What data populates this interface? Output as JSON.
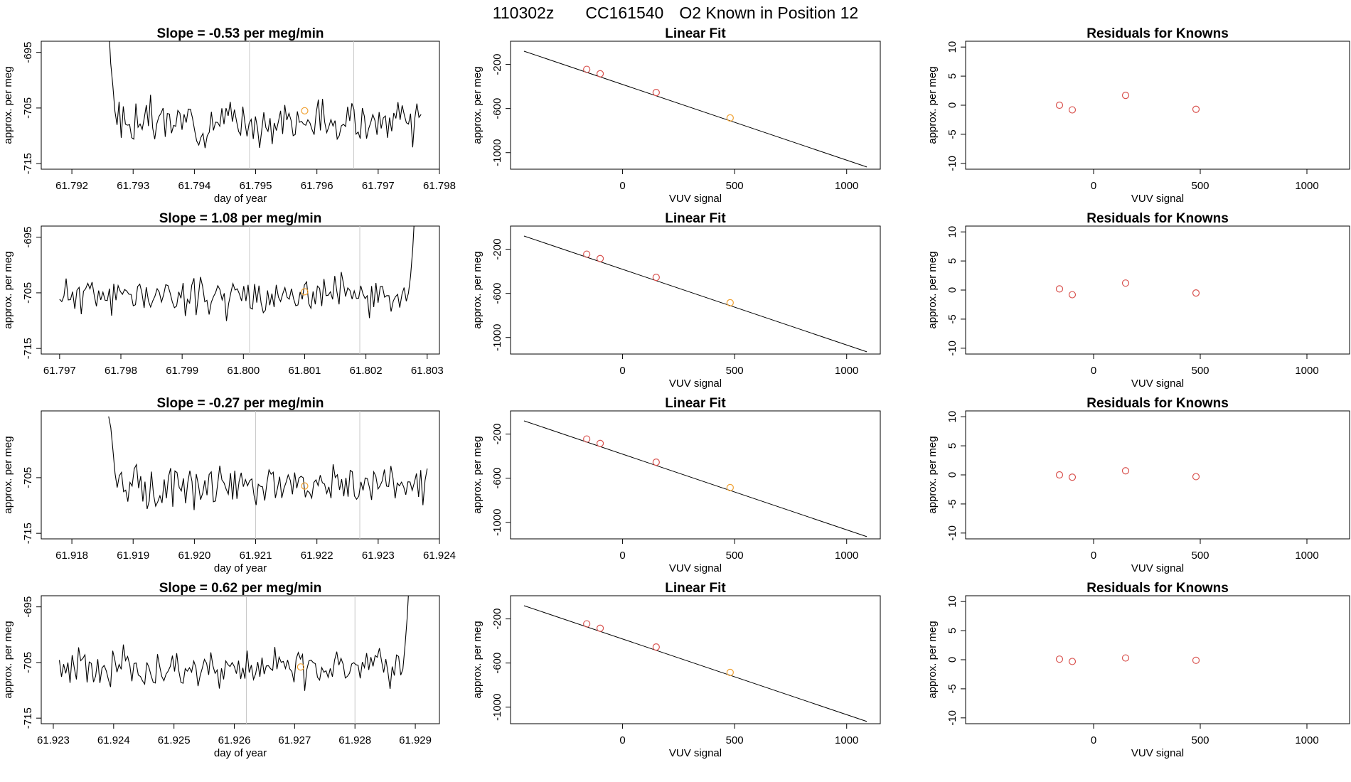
{
  "header": {
    "title_date": "110302z",
    "title_id": "CC161540",
    "title_desc": "O2 Known in Position  12"
  },
  "colors": {
    "line": "#000000",
    "marker_red": "#d9534f",
    "marker_orange": "#f0a030",
    "vline": "#c8c8c8"
  },
  "chart_data": [
    {
      "type": "line",
      "title": "Slope =  -0.53  per meg/min",
      "xlabel": "day of year",
      "ylabel": "approx. per meg",
      "xlim": [
        61.7915,
        61.798
      ],
      "ylim": [
        -716,
        -693
      ],
      "xticks": [
        "61.792",
        "61.793",
        "61.794",
        "61.795",
        "61.796",
        "61.797",
        "61.798"
      ],
      "yticks": [
        "-695",
        "-705",
        "-715"
      ],
      "x_start": 61.7926,
      "x_end": 61.7977,
      "n": 150,
      "initial_spike": [
        -690,
        -697,
        -701
      ],
      "baseline": -707.5,
      "amplitude": 2.6,
      "seed": 3,
      "vlines": [
        61.7949,
        61.7966
      ],
      "highlight_point": {
        "x": 61.7958,
        "y": -705.5
      }
    },
    {
      "type": "scatter",
      "title": "Linear Fit",
      "xlabel": "VUV signal",
      "ylabel": "approx. per meg",
      "xlim": [
        -500,
        1150
      ],
      "ylim": [
        -1150,
        10
      ],
      "xticks": [
        "0",
        "500",
        "1000"
      ],
      "yticks": [
        "-200",
        "-600",
        "-1000"
      ],
      "fit_line": {
        "x": [
          -440,
          1090
        ],
        "y": [
          -80,
          -1130
        ]
      },
      "points": [
        {
          "x": -160,
          "y": -245,
          "color": "red"
        },
        {
          "x": -100,
          "y": -285,
          "color": "red"
        },
        {
          "x": 150,
          "y": -455,
          "color": "red"
        },
        {
          "x": 480,
          "y": -685,
          "color": "orange"
        }
      ]
    },
    {
      "type": "scatter",
      "title": "Residuals for Knowns",
      "xlabel": "VUV signal",
      "ylabel": "approx. per meg",
      "xlim": [
        -600,
        1200
      ],
      "ylim": [
        -11,
        11
      ],
      "xticks": [
        "0",
        "500",
        "1000"
      ],
      "yticks": [
        "10",
        "5",
        "0",
        "-5",
        "-10"
      ],
      "points": [
        {
          "x": -160,
          "y": 0.0
        },
        {
          "x": -100,
          "y": -0.8
        },
        {
          "x": 150,
          "y": 1.7
        },
        {
          "x": 480,
          "y": -0.7
        }
      ]
    },
    {
      "type": "line",
      "title": "Slope =  1.08  per meg/min",
      "xlabel": "",
      "ylabel": "approx. per meg",
      "xlim": [
        61.7967,
        61.8032
      ],
      "ylim": [
        -716,
        -693
      ],
      "xticks": [
        "61.797",
        "61.798",
        "61.799",
        "61.800",
        "61.801",
        "61.802",
        "61.803"
      ],
      "yticks": [
        "-695",
        "-705",
        "-715"
      ],
      "x_start": 61.797,
      "x_end": 61.8028,
      "n": 165,
      "end_spike": [
        -702,
        -697,
        -690
      ],
      "baseline": -705.5,
      "amplitude": 2.4,
      "seed": 11,
      "vlines": [
        61.8001,
        61.8019
      ],
      "highlight_point": {
        "x": 61.801,
        "y": -704.8
      }
    },
    {
      "type": "scatter",
      "title": "Linear Fit",
      "xlabel": "VUV signal",
      "ylabel": "approx. per meg",
      "xlim": [
        -500,
        1150
      ],
      "ylim": [
        -1150,
        10
      ],
      "xticks": [
        "0",
        "500",
        "1000"
      ],
      "yticks": [
        "-200",
        "-600",
        "-1000"
      ],
      "fit_line": {
        "x": [
          -440,
          1090
        ],
        "y": [
          -80,
          -1130
        ]
      },
      "points": [
        {
          "x": -160,
          "y": -245,
          "color": "red"
        },
        {
          "x": -100,
          "y": -285,
          "color": "red"
        },
        {
          "x": 150,
          "y": -455,
          "color": "red"
        },
        {
          "x": 480,
          "y": -685,
          "color": "orange"
        }
      ]
    },
    {
      "type": "scatter",
      "title": "Residuals for Knowns",
      "xlabel": "VUV signal",
      "ylabel": "approx. per meg",
      "xlim": [
        -600,
        1200
      ],
      "ylim": [
        -11,
        11
      ],
      "xticks": [
        "0",
        "500",
        "1000"
      ],
      "yticks": [
        "10",
        "5",
        "0",
        "-5",
        "-10"
      ],
      "points": [
        {
          "x": -160,
          "y": 0.2
        },
        {
          "x": -100,
          "y": -0.8
        },
        {
          "x": 150,
          "y": 1.2
        },
        {
          "x": 480,
          "y": -0.5
        }
      ]
    },
    {
      "type": "line",
      "title": "Slope =  -0.27  per meg/min",
      "xlabel": "day of year",
      "ylabel": "approx. per meg",
      "xlim": [
        61.9175,
        61.924
      ],
      "ylim": [
        -716,
        -693
      ],
      "xticks": [
        "61.918",
        "61.919",
        "61.920",
        "61.921",
        "61.922",
        "61.923",
        "61.924"
      ],
      "yticks": [
        "-705",
        "-715"
      ],
      "x_start": 61.9186,
      "x_end": 61.9238,
      "n": 150,
      "initial_spike": [
        -694,
        -696,
        -700
      ],
      "baseline": -706.5,
      "amplitude": 2.5,
      "seed": 21,
      "vlines": [
        61.921,
        61.9227
      ],
      "highlight_point": {
        "x": 61.9218,
        "y": -706.5
      }
    },
    {
      "type": "scatter",
      "title": "Linear Fit",
      "xlabel": "VUV signal",
      "ylabel": "approx. per meg",
      "xlim": [
        -500,
        1150
      ],
      "ylim": [
        -1150,
        10
      ],
      "xticks": [
        "0",
        "500",
        "1000"
      ],
      "yticks": [
        "-200",
        "-600",
        "-1000"
      ],
      "fit_line": {
        "x": [
          -440,
          1090
        ],
        "y": [
          -80,
          -1130
        ]
      },
      "points": [
        {
          "x": -160,
          "y": -245,
          "color": "red"
        },
        {
          "x": -100,
          "y": -285,
          "color": "red"
        },
        {
          "x": 150,
          "y": -455,
          "color": "red"
        },
        {
          "x": 480,
          "y": -685,
          "color": "orange"
        }
      ]
    },
    {
      "type": "scatter",
      "title": "Residuals for Knowns",
      "xlabel": "VUV signal",
      "ylabel": "approx. per meg",
      "xlim": [
        -600,
        1200
      ],
      "ylim": [
        -11,
        11
      ],
      "xticks": [
        "0",
        "500",
        "1000"
      ],
      "yticks": [
        "10",
        "5",
        "0",
        "-5",
        "-10"
      ],
      "points": [
        {
          "x": -160,
          "y": 0.0
        },
        {
          "x": -100,
          "y": -0.4
        },
        {
          "x": 150,
          "y": 0.7
        },
        {
          "x": 480,
          "y": -0.3
        }
      ]
    },
    {
      "type": "line",
      "title": "Slope =  0.62  per meg/min",
      "xlabel": "day of year",
      "ylabel": "approx. per meg",
      "xlim": [
        61.9228,
        61.9294
      ],
      "ylim": [
        -716,
        -693
      ],
      "xticks": [
        "61.923",
        "61.924",
        "61.925",
        "61.926",
        "61.927",
        "61.928",
        "61.929"
      ],
      "yticks": [
        "-695",
        "-705",
        "-715"
      ],
      "x_start": 61.9231,
      "x_end": 61.9289,
      "n": 165,
      "end_spike": [
        -702,
        -697,
        -690
      ],
      "baseline": -706.0,
      "amplitude": 2.4,
      "seed": 33,
      "vlines": [
        61.9262,
        61.928
      ],
      "highlight_point": {
        "x": 61.9271,
        "y": -705.8
      }
    },
    {
      "type": "scatter",
      "title": "Linear Fit",
      "xlabel": "VUV signal",
      "ylabel": "approx. per meg",
      "xlim": [
        -500,
        1150
      ],
      "ylim": [
        -1150,
        10
      ],
      "xticks": [
        "0",
        "500",
        "1000"
      ],
      "yticks": [
        "-200",
        "-600",
        "-1000"
      ],
      "fit_line": {
        "x": [
          -440,
          1090
        ],
        "y": [
          -80,
          -1130
        ]
      },
      "points": [
        {
          "x": -160,
          "y": -245,
          "color": "red"
        },
        {
          "x": -100,
          "y": -285,
          "color": "red"
        },
        {
          "x": 150,
          "y": -455,
          "color": "red"
        },
        {
          "x": 480,
          "y": -685,
          "color": "orange"
        }
      ]
    },
    {
      "type": "scatter",
      "title": "Residuals for Knowns",
      "xlabel": "VUV signal",
      "ylabel": "approx. per meg",
      "xlim": [
        -600,
        1200
      ],
      "ylim": [
        -11,
        11
      ],
      "xticks": [
        "0",
        "500",
        "1000"
      ],
      "yticks": [
        "10",
        "5",
        "0",
        "-5",
        "-10"
      ],
      "points": [
        {
          "x": -160,
          "y": 0.1
        },
        {
          "x": -100,
          "y": -0.3
        },
        {
          "x": 150,
          "y": 0.3
        },
        {
          "x": 480,
          "y": -0.1
        }
      ]
    }
  ]
}
